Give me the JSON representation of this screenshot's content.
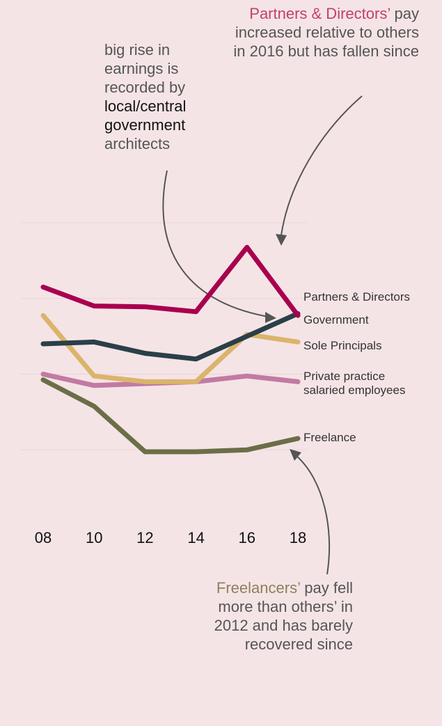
{
  "chart_data": {
    "type": "line",
    "x": [
      "08",
      "10",
      "12",
      "14",
      "16",
      "18"
    ],
    "series": [
      {
        "name": "Partners & Directors",
        "color": "#a8004f",
        "values": [
          6.3,
          5.8,
          5.78,
          5.65,
          7.35,
          5.55
        ]
      },
      {
        "name": "Government",
        "color": "#2a3f48",
        "values": [
          4.8,
          4.85,
          4.55,
          4.4,
          5.0,
          5.6
        ]
      },
      {
        "name": "Sole Principals",
        "color": "#dbb46c",
        "values": [
          5.55,
          3.95,
          3.8,
          3.8,
          5.05,
          4.85
        ]
      },
      {
        "name": "Private practice salaried employees",
        "label_lines": [
          "Private practice",
          "salaried employees"
        ],
        "color": "#c27aa3",
        "values": [
          4.0,
          3.7,
          3.75,
          3.8,
          3.95,
          3.8
        ]
      },
      {
        "name": "Freelance",
        "color": "#6b6e47",
        "values": [
          3.85,
          3.15,
          1.95,
          1.95,
          2.0,
          2.3
        ]
      }
    ],
    "ylim": [
      0,
      8
    ],
    "gridlines": [
      2,
      4,
      6,
      8
    ],
    "grid": true,
    "annotations": {
      "government": {
        "lead": "big rise in earnings is recorded by",
        "highlight": "local/central government",
        "tail": "architects"
      },
      "partners": {
        "highlight": "Partners & Directors’",
        "rest": "pay increased relative to others in 2016 but has fallen since"
      },
      "freelance": {
        "highlight": "Freelancers’",
        "rest": "pay fell more than others’ in 2012 and has barely recovered since"
      }
    }
  }
}
